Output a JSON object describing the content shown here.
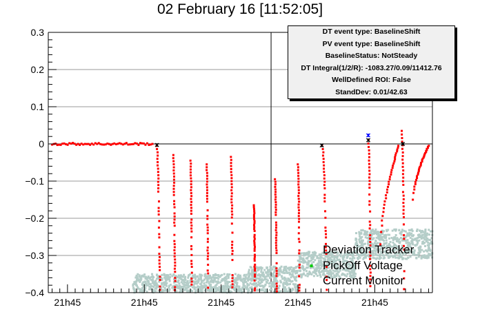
{
  "title": "02 February 16 [11:52:05]",
  "stats_box": {
    "lines": [
      "DT event type: BaselineShift",
      "PV event type: BaselineShift",
      "BaselineStatus: NotSteady",
      "DT Integral(1/2/R): -1083.27/0.09/11412.76",
      "WellDefined ROI: False",
      "StandDev: 0.01/42.63"
    ]
  },
  "legend": {
    "entries": [
      "Deviation Tracker",
      "PickOff Voltage",
      "Current Monitor"
    ]
  },
  "colors": {
    "deviation_tracker": "#ff0000",
    "pickoff_voltage": "#b4cdc8",
    "current_monitor": "#00cc00",
    "markers_black": "#000000",
    "marker_blue": "#0000ff"
  },
  "chart_data": {
    "type": "scatter",
    "ylim": [
      -0.4,
      0.3
    ],
    "yticks": [
      -0.4,
      -0.3,
      -0.2,
      -0.1,
      0,
      0.1,
      0.2,
      0.3
    ],
    "ytick_labels": [
      "−0.4",
      "−0.3",
      "−0.2",
      "−0.1",
      "0",
      "0.1",
      "0.2",
      "0.3"
    ],
    "xlim": [
      0,
      100
    ],
    "xticks": [
      5,
      25,
      45,
      65,
      85
    ],
    "xtick_labels": [
      "21h45",
      "21h45",
      "21h45",
      "21h45",
      "21h45"
    ],
    "grid": true,
    "legend_position": "bottom-right",
    "series": [
      {
        "name": "Deviation Tracker",
        "style": "dots",
        "baseline": {
          "x_from": 1,
          "x_to": 27.5,
          "y": 0.0
        },
        "drops": [
          {
            "x": 28.2,
            "y_from": -0.005,
            "y_to": -0.41,
            "dx": 0.9
          },
          {
            "x": 32.5,
            "y_from": -0.03,
            "y_to": -0.41,
            "dx": 0.5
          },
          {
            "x": 37.0,
            "y_from": -0.045,
            "y_to": -0.41,
            "dx": 0.4
          },
          {
            "x": 41.2,
            "y_from": -0.055,
            "y_to": -0.41,
            "dx": 0.4
          },
          {
            "x": 47.5,
            "y_from": -0.035,
            "y_to": -0.41,
            "dx": 0.5
          },
          {
            "x": 53.5,
            "y_from": -0.165,
            "y_to": -0.41,
            "dx": 0.3
          },
          {
            "x": 59.0,
            "y_from": -0.095,
            "y_to": -0.41,
            "dx": 0.5
          },
          {
            "x": 65.0,
            "y_from": -0.055,
            "y_to": -0.41,
            "dx": 0.4
          },
          {
            "x": 71.3,
            "y_from": -0.005,
            "y_to": -0.41,
            "dx": 1.2
          },
          {
            "x": 83.3,
            "y_from": 0.01,
            "y_to": -0.41,
            "dx": 0.6
          },
          {
            "x": 92.0,
            "y_from": 0.035,
            "y_to": -0.41,
            "dx": 0.7
          }
        ],
        "recoveries": [
          {
            "x_from": 86.5,
            "x_to": 91.2,
            "y_from": -0.27,
            "y_to": -0.005
          },
          {
            "x_from": 95.0,
            "x_to": 99.0,
            "y_from": -0.15,
            "y_to": -0.005
          }
        ]
      },
      {
        "name": "PickOff Voltage",
        "style": "dots",
        "bands": [
          {
            "x_from": 22,
            "x_to": 52,
            "y_from": -0.41,
            "y_to": -0.35
          },
          {
            "x_from": 52,
            "x_to": 65,
            "y_from": -0.4,
            "y_to": -0.33
          },
          {
            "x_from": 65,
            "x_to": 80,
            "y_from": -0.36,
            "y_to": -0.29
          },
          {
            "x_from": 80,
            "x_to": 100,
            "y_from": -0.31,
            "y_to": -0.23
          }
        ]
      },
      {
        "name": "Current Monitor",
        "style": "dots",
        "points": [
          {
            "x": 68.5,
            "y": -0.328
          }
        ]
      }
    ],
    "special_markers": [
      {
        "x": 28.3,
        "y": -0.003,
        "color": "black"
      },
      {
        "x": 71.2,
        "y": -0.004,
        "color": "black"
      },
      {
        "x": 83.3,
        "y": 0.01,
        "color": "black"
      },
      {
        "x": 83.3,
        "y": 0.023,
        "color": "blue"
      },
      {
        "x": 92.3,
        "y": 0.0,
        "color": "black"
      }
    ],
    "vertical_line_x": 58.0
  }
}
